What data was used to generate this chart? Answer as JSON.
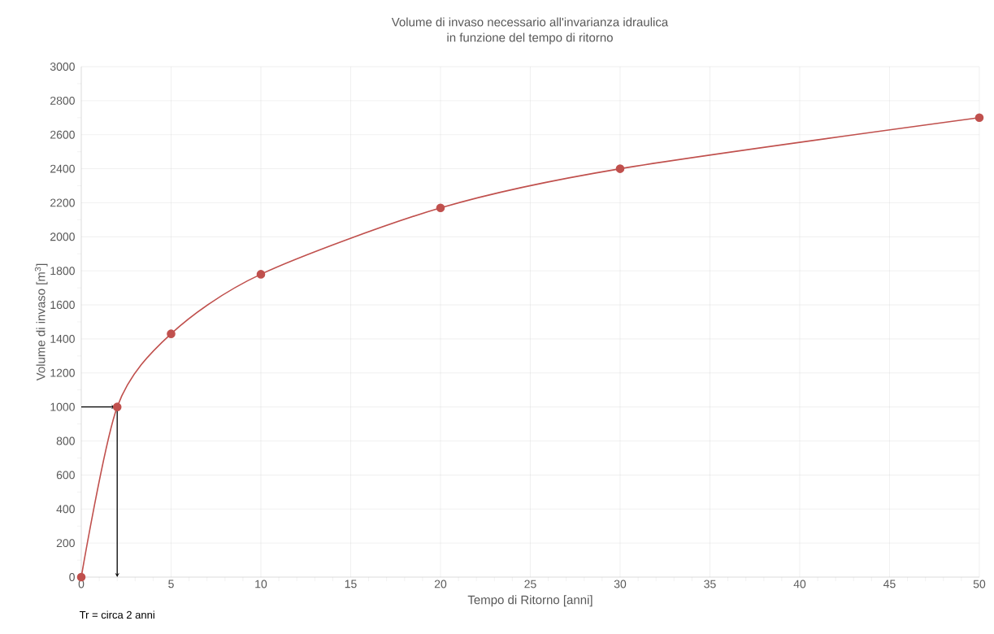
{
  "chart_data": {
    "type": "line",
    "title": "Volume di invaso necessario  all'invarianza idraulica\nin funzione del tempo di ritorno",
    "xlabel": "Tempo di Ritorno [anni]",
    "ylabel": "Volume di invaso [m$^{3}$]",
    "x": [
      0,
      2,
      5,
      10,
      20,
      30,
      50
    ],
    "series": [
      {
        "color": "#c0504d",
        "values": [
          0,
          1000,
          1430,
          1780,
          2170,
          2400,
          2700
        ]
      }
    ],
    "xlim": [
      0,
      50
    ],
    "ylim": [
      0,
      3000
    ],
    "xticks": [
      0,
      5,
      10,
      15,
      20,
      25,
      30,
      35,
      40,
      45,
      50
    ],
    "yticks": [
      0,
      200,
      400,
      600,
      800,
      1000,
      1200,
      1400,
      1600,
      1800,
      2000,
      2200,
      2400,
      2600,
      2800,
      3000
    ],
    "grid": true,
    "marker": "circle",
    "line_style": "solid",
    "annotations": [
      "Tr = circa 2 anni"
    ]
  }
}
